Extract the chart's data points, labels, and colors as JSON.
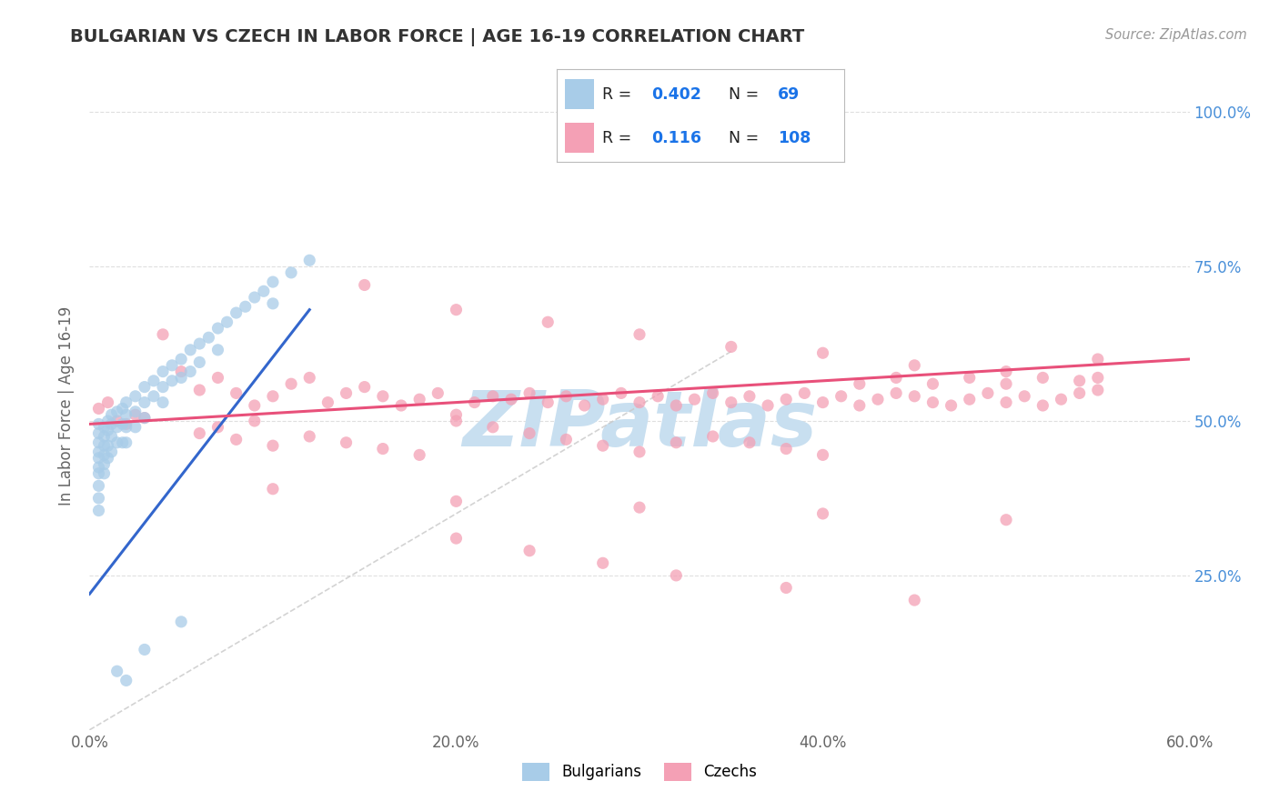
{
  "title": "BULGARIAN VS CZECH IN LABOR FORCE | AGE 16-19 CORRELATION CHART",
  "source": "Source: ZipAtlas.com",
  "ylabel": "In Labor Force | Age 16-19",
  "xlim": [
    0.0,
    0.6
  ],
  "ylim": [
    0.0,
    1.05
  ],
  "xtick_labels": [
    "0.0%",
    "20.0%",
    "40.0%",
    "60.0%"
  ],
  "xtick_vals": [
    0.0,
    0.2,
    0.4,
    0.6
  ],
  "ytick_labels": [
    "25.0%",
    "50.0%",
    "75.0%",
    "100.0%"
  ],
  "ytick_vals": [
    0.25,
    0.5,
    0.75,
    1.0
  ],
  "bulgarian_color": "#a8cce8",
  "czech_color": "#f4a0b5",
  "bulgarian_line_color": "#3366cc",
  "czech_line_color": "#e8507a",
  "diagonal_color": "#c8c8c8",
  "background_color": "#ffffff",
  "watermark_text": "ZIPatlas",
  "watermark_color": "#c8dff0",
  "bulgarians_label": "Bulgarians",
  "czechs_label": "Czechs",
  "title_color": "#333333",
  "source_color": "#999999",
  "legend_r_color": "#1a73e8",
  "bulgarian_scatter": {
    "x": [
      0.005,
      0.005,
      0.005,
      0.005,
      0.005,
      0.005,
      0.005,
      0.005,
      0.005,
      0.005,
      0.008,
      0.008,
      0.008,
      0.008,
      0.008,
      0.008,
      0.01,
      0.01,
      0.01,
      0.01,
      0.012,
      0.012,
      0.012,
      0.012,
      0.015,
      0.015,
      0.015,
      0.018,
      0.018,
      0.018,
      0.02,
      0.02,
      0.02,
      0.02,
      0.025,
      0.025,
      0.025,
      0.03,
      0.03,
      0.03,
      0.035,
      0.035,
      0.04,
      0.04,
      0.04,
      0.045,
      0.045,
      0.05,
      0.05,
      0.055,
      0.055,
      0.06,
      0.06,
      0.065,
      0.07,
      0.07,
      0.075,
      0.08,
      0.085,
      0.09,
      0.095,
      0.1,
      0.1,
      0.11,
      0.12,
      0.05,
      0.03,
      0.015,
      0.02
    ],
    "y": [
      0.495,
      0.48,
      0.465,
      0.45,
      0.44,
      0.425,
      0.415,
      0.395,
      0.375,
      0.355,
      0.49,
      0.475,
      0.46,
      0.445,
      0.43,
      0.415,
      0.5,
      0.485,
      0.46,
      0.44,
      0.51,
      0.495,
      0.475,
      0.45,
      0.515,
      0.49,
      0.465,
      0.52,
      0.495,
      0.465,
      0.53,
      0.51,
      0.49,
      0.465,
      0.54,
      0.515,
      0.49,
      0.555,
      0.53,
      0.505,
      0.565,
      0.54,
      0.58,
      0.555,
      0.53,
      0.59,
      0.565,
      0.6,
      0.57,
      0.615,
      0.58,
      0.625,
      0.595,
      0.635,
      0.65,
      0.615,
      0.66,
      0.675,
      0.685,
      0.7,
      0.71,
      0.725,
      0.69,
      0.74,
      0.76,
      0.175,
      0.13,
      0.095,
      0.08
    ]
  },
  "czech_scatter": {
    "x": [
      0.005,
      0.01,
      0.015,
      0.02,
      0.025,
      0.03,
      0.04,
      0.05,
      0.06,
      0.07,
      0.08,
      0.09,
      0.1,
      0.11,
      0.12,
      0.13,
      0.14,
      0.15,
      0.16,
      0.17,
      0.18,
      0.19,
      0.2,
      0.21,
      0.22,
      0.23,
      0.24,
      0.25,
      0.26,
      0.27,
      0.28,
      0.29,
      0.3,
      0.31,
      0.32,
      0.33,
      0.34,
      0.35,
      0.36,
      0.37,
      0.38,
      0.39,
      0.4,
      0.41,
      0.42,
      0.43,
      0.44,
      0.45,
      0.46,
      0.47,
      0.48,
      0.49,
      0.5,
      0.51,
      0.52,
      0.53,
      0.54,
      0.55,
      0.06,
      0.07,
      0.08,
      0.09,
      0.1,
      0.12,
      0.14,
      0.16,
      0.18,
      0.2,
      0.22,
      0.24,
      0.26,
      0.28,
      0.3,
      0.32,
      0.34,
      0.36,
      0.38,
      0.4,
      0.42,
      0.44,
      0.46,
      0.48,
      0.5,
      0.52,
      0.54,
      0.15,
      0.2,
      0.25,
      0.3,
      0.35,
      0.4,
      0.45,
      0.5,
      0.55,
      0.1,
      0.2,
      0.3,
      0.4,
      0.5,
      0.55,
      0.45,
      0.38,
      0.32,
      0.28,
      0.24,
      0.2
    ],
    "y": [
      0.52,
      0.53,
      0.5,
      0.495,
      0.51,
      0.505,
      0.64,
      0.58,
      0.55,
      0.57,
      0.545,
      0.525,
      0.54,
      0.56,
      0.57,
      0.53,
      0.545,
      0.555,
      0.54,
      0.525,
      0.535,
      0.545,
      0.51,
      0.53,
      0.54,
      0.535,
      0.545,
      0.53,
      0.54,
      0.525,
      0.535,
      0.545,
      0.53,
      0.54,
      0.525,
      0.535,
      0.545,
      0.53,
      0.54,
      0.525,
      0.535,
      0.545,
      0.53,
      0.54,
      0.525,
      0.535,
      0.545,
      0.54,
      0.53,
      0.525,
      0.535,
      0.545,
      0.53,
      0.54,
      0.525,
      0.535,
      0.545,
      0.55,
      0.48,
      0.49,
      0.47,
      0.5,
      0.46,
      0.475,
      0.465,
      0.455,
      0.445,
      0.5,
      0.49,
      0.48,
      0.47,
      0.46,
      0.45,
      0.465,
      0.475,
      0.465,
      0.455,
      0.445,
      0.56,
      0.57,
      0.56,
      0.57,
      0.56,
      0.57,
      0.565,
      0.72,
      0.68,
      0.66,
      0.64,
      0.62,
      0.61,
      0.59,
      0.58,
      0.6,
      0.39,
      0.37,
      0.36,
      0.35,
      0.34,
      0.57,
      0.21,
      0.23,
      0.25,
      0.27,
      0.29,
      0.31
    ]
  }
}
